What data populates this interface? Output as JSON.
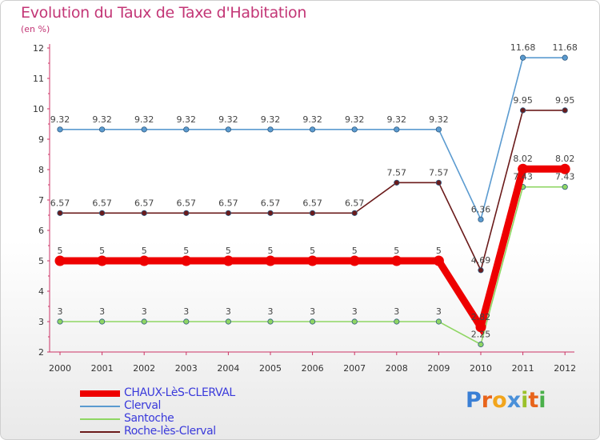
{
  "title": "Evolution du Taux de Taxe d'Habitation",
  "unit": "(en %)",
  "logo": {
    "text": "Proxiti",
    "letters": [
      {
        "ch": "P",
        "color": "#3a7fd5"
      },
      {
        "ch": "r",
        "color": "#e8641b"
      },
      {
        "ch": "o",
        "color": "#f2a51c"
      },
      {
        "ch": "x",
        "color": "#4a90d9"
      },
      {
        "ch": "i",
        "color": "#9bc12b"
      },
      {
        "ch": "t",
        "color": "#e8641b"
      },
      {
        "ch": "i",
        "color": "#4ab04a"
      }
    ]
  },
  "chart_data": {
    "type": "line",
    "title": "Evolution du Taux de Taxe d'Habitation",
    "ylabel": "(en %)",
    "xlabel": "",
    "ylim": [
      2,
      12
    ],
    "yticks": [
      2,
      3,
      4,
      5,
      6,
      7,
      8,
      9,
      10,
      11,
      12
    ],
    "categories": [
      "2000",
      "2001",
      "2002",
      "2003",
      "2004",
      "2005",
      "2006",
      "2007",
      "2008",
      "2009",
      "2010",
      "2011",
      "2012"
    ],
    "grid": false,
    "legend_position": "bottom-left",
    "series": [
      {
        "name": "Clerval",
        "color": "#5b9bd0",
        "thick": false,
        "values": [
          9.32,
          9.32,
          9.32,
          9.32,
          9.32,
          9.32,
          9.32,
          9.32,
          9.32,
          9.32,
          6.36,
          11.68,
          11.68
        ],
        "labels": [
          "9.32",
          "9.32",
          "9.32",
          "9.32",
          "9.32",
          "9.32",
          "9.32",
          "9.32",
          "9.32",
          "9.32",
          "6.36",
          "11.68",
          "11.68"
        ]
      },
      {
        "name": "Roche-lès-Clerval",
        "color": "#6b1b1b",
        "thick": false,
        "values": [
          6.57,
          6.57,
          6.57,
          6.57,
          6.57,
          6.57,
          6.57,
          6.57,
          7.57,
          7.57,
          4.69,
          9.95,
          9.95
        ],
        "labels": [
          "6.57",
          "6.57",
          "6.57",
          "6.57",
          "6.57",
          "6.57",
          "6.57",
          "6.57",
          "7.57",
          "7.57",
          "4.69",
          "9.95",
          "9.95"
        ]
      },
      {
        "name": "Santoche",
        "color": "#8fd663",
        "thick": false,
        "values": [
          3,
          3,
          3,
          3,
          3,
          3,
          3,
          3,
          3,
          3,
          2.25,
          7.43,
          7.43
        ],
        "labels": [
          "3",
          "3",
          "3",
          "3",
          "3",
          "3",
          "3",
          "3",
          "3",
          "3",
          "2.25",
          "7.43",
          "7.43"
        ]
      },
      {
        "name": "CHAUX-LèS-CLERVAL",
        "color": "#ee0000",
        "thick": true,
        "values": [
          5,
          5,
          5,
          5,
          5,
          5,
          5,
          5,
          5,
          5,
          2.82,
          8.02,
          8.02
        ],
        "labels": [
          "5",
          "5",
          "5",
          "5",
          "5",
          "5",
          "5",
          "5",
          "5",
          "5",
          "2.82",
          "8.02",
          "8.02"
        ]
      }
    ],
    "legend_order": [
      "CHAUX-LèS-CLERVAL",
      "Clerval",
      "Santoche",
      "Roche-lès-Clerval"
    ]
  }
}
